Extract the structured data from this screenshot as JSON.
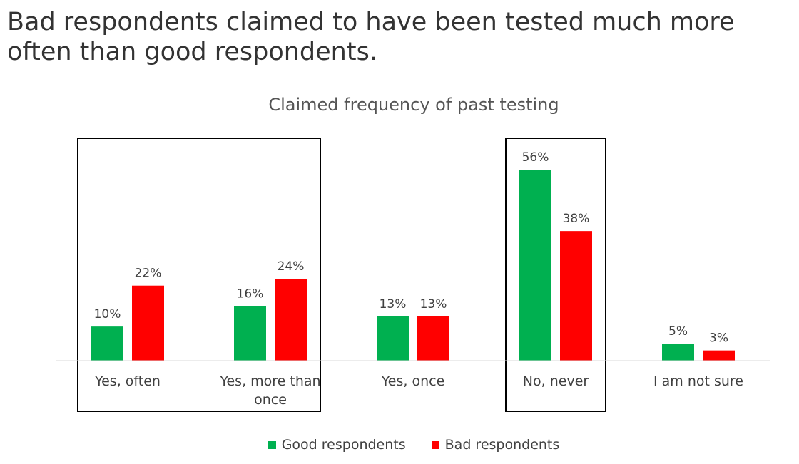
{
  "headline": "Bad respondents claimed to have been tested much more often than good respondents.",
  "chart_data": {
    "type": "bar",
    "title": "Claimed frequency of past testing",
    "categories": [
      [
        "Yes, often"
      ],
      [
        "Yes, more than",
        "once"
      ],
      [
        "Yes, once"
      ],
      [
        "No, never"
      ],
      [
        "I am not sure"
      ]
    ],
    "series": [
      {
        "name": "Good respondents",
        "color": "#00b050",
        "values": [
          10,
          16,
          13,
          56,
          5
        ],
        "labels": [
          "10%",
          "16%",
          "13%",
          "56%",
          "5%"
        ]
      },
      {
        "name": "Bad respondents",
        "color": "#ff0000",
        "values": [
          22,
          24,
          13,
          38,
          3
        ],
        "labels": [
          "22%",
          "24%",
          "13%",
          "38%",
          "3%"
        ]
      }
    ],
    "ylim": [
      0,
      60
    ],
    "grid": false,
    "legend_position": "bottom",
    "highlight_boxes": [
      [
        0,
        1
      ],
      [
        3,
        3
      ]
    ]
  }
}
